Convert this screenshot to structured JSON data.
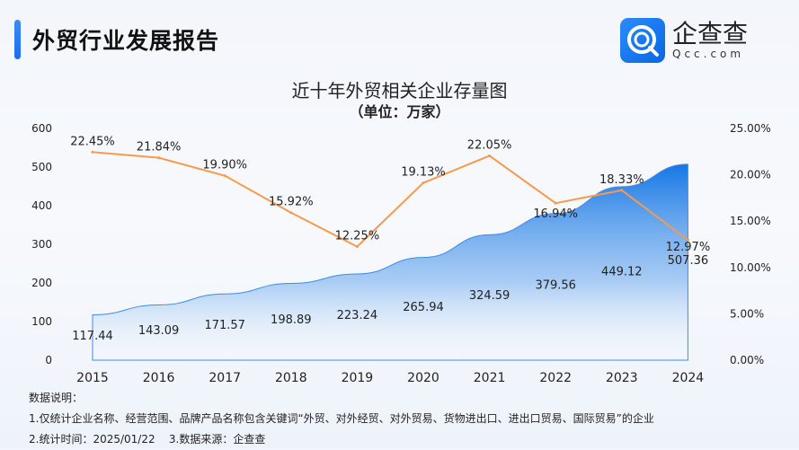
{
  "header": {
    "title": "外贸行业发展报告",
    "logo_cn": "企查查",
    "logo_en": "Qcc.com"
  },
  "chart_data": {
    "type": "area+line",
    "title": "近十年外贸相关企业存量图",
    "subtitle": "（单位：万家）",
    "categories": [
      "2015",
      "2016",
      "2017",
      "2018",
      "2019",
      "2020",
      "2021",
      "2022",
      "2023",
      "2024"
    ],
    "series": [
      {
        "type": "area",
        "axis": "left",
        "values": [
          117.44,
          143.09,
          171.57,
          198.89,
          223.24,
          265.94,
          324.59,
          379.56,
          449.12,
          507.36
        ],
        "labels": [
          "117.44",
          "143.09",
          "171.57",
          "198.89",
          "223.24",
          "265.94",
          "324.59",
          "379.56",
          "449.12",
          "507.36"
        ],
        "color": "#1677e6"
      },
      {
        "type": "line",
        "axis": "right",
        "values": [
          22.45,
          21.84,
          19.9,
          15.92,
          12.25,
          19.13,
          22.05,
          16.94,
          18.33,
          12.97
        ],
        "labels": [
          "22.45%",
          "21.84%",
          "19.90%",
          "15.92%",
          "12.25%",
          "19.13%",
          "22.05%",
          "16.94%",
          "18.33%",
          "12.97%"
        ],
        "color": "#f59a4e"
      }
    ],
    "left_axis": {
      "ylim": [
        0,
        600
      ],
      "ticks": [
        "0",
        "100",
        "200",
        "300",
        "400",
        "500",
        "600"
      ]
    },
    "right_axis": {
      "ylim": [
        0,
        25
      ],
      "ticks": [
        "0.00%",
        "5.00%",
        "10.00%",
        "15.00%",
        "20.00%",
        "25.00%"
      ]
    },
    "grid": false,
    "legend": "none"
  },
  "notes": {
    "heading": "数据说明：",
    "line1": "1.仅统计企业名称、经营范围、品牌产品名称包含关键词“外贸、对外经贸、对外贸易、货物进出口、进出口贸易、国际贸易”的企业",
    "line2": "2.统计时间：2025/01/22    3.数据来源：企查查"
  }
}
